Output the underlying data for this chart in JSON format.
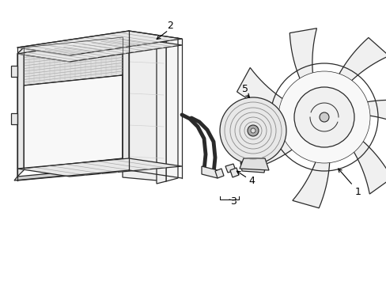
{
  "background_color": "#ffffff",
  "line_color": "#2a2a2a",
  "light_fill": "#f5f5f5",
  "mid_fill": "#e8e8e8",
  "dark_fill": "#d0d0d0",
  "figsize": [
    4.89,
    3.6
  ],
  "dpi": 100,
  "label_fontsize": 8
}
